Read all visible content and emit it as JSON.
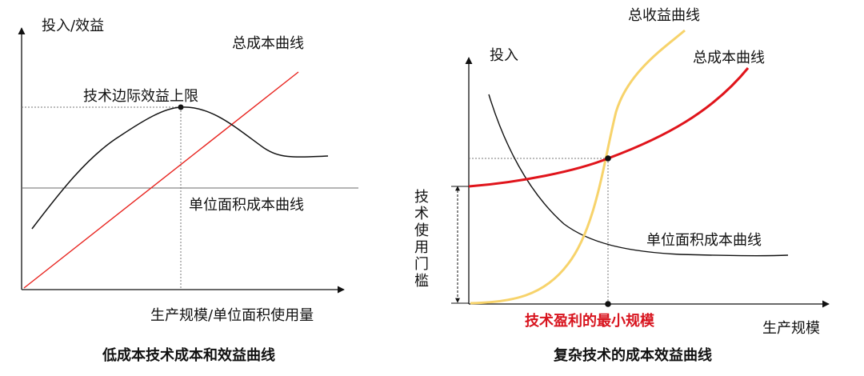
{
  "left_diagram": {
    "y_axis_label": "投入/效益",
    "x_axis_label": "生产规模/单位面积使用量",
    "total_cost_label": "总成本曲线",
    "benefit_limit_label": "技术边际效益上限",
    "unit_cost_label": "单位面积成本曲线",
    "caption": "低成本技术成本和效益曲线",
    "colors": {
      "total_cost": "#e8231e",
      "benefit": "#111111",
      "axis": "#111111"
    }
  },
  "right_diagram": {
    "y_axis_label": "投入",
    "x_axis_label": "生产规模",
    "total_revenue_label": "总收益曲线",
    "total_cost_label": "总成本曲线",
    "unit_cost_label": "单位面积成本曲线",
    "threshold_label": "技术使用门槛",
    "threshold_chars": [
      "技",
      "术",
      "使",
      "用",
      "门",
      "槛"
    ],
    "min_scale_label": "技术盈利的最小规模",
    "caption": "复杂技术的成本效益曲线",
    "colors": {
      "total_cost": "#e0141b",
      "total_revenue": "#f7d36b",
      "highlight_text": "#d8141e"
    }
  }
}
